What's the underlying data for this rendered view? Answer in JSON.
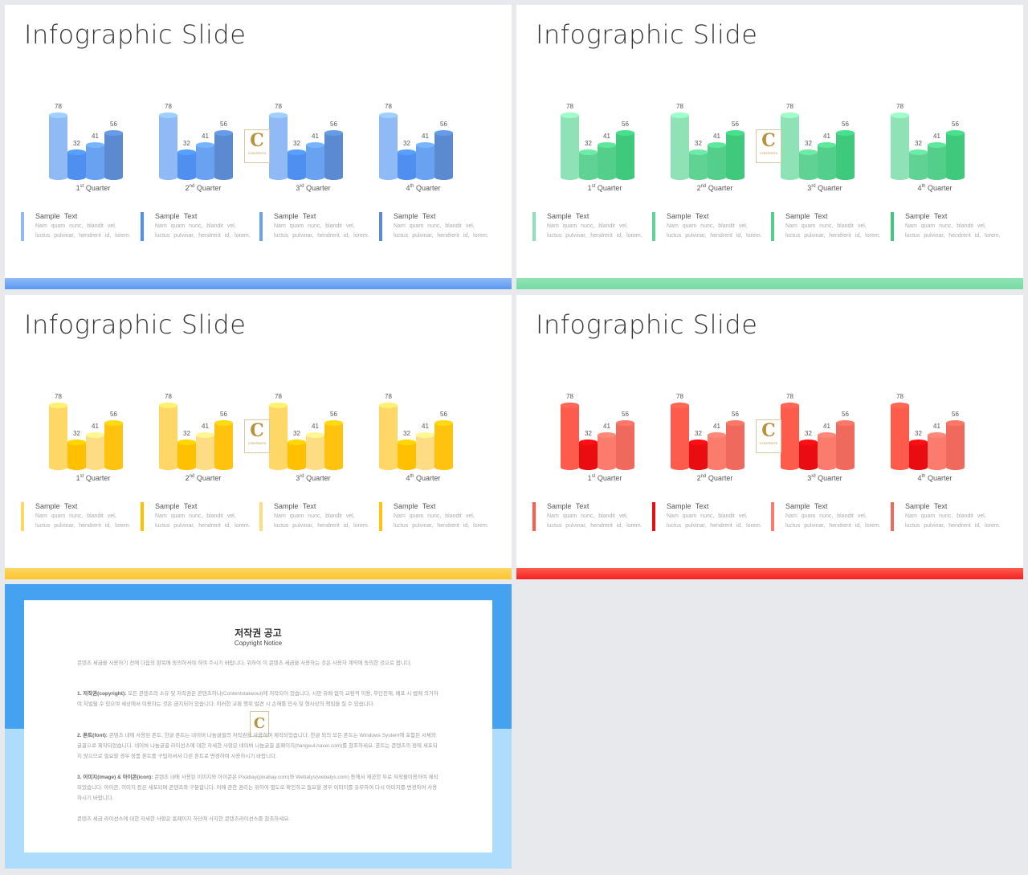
{
  "slides": [
    {
      "title": "Infographic Slide",
      "theme": "blue",
      "colors": [
        "#8fbaf6",
        "#4f8fef",
        "#6aa2f2",
        "#5b8ad0"
      ],
      "bar_color": "#5b98f2",
      "notes": [
        {
          "title": "Sample Text",
          "line1": "Nam quam nunc, blandit vel,",
          "line2": "luctus pulvinar, hendrerit id, lorem."
        },
        {
          "title": "Sample Text",
          "line1": "Nam quam nunc, blandit vel,",
          "line2": "luctus pulvinar, hendrerit id, lorem."
        },
        {
          "title": "Sample Text",
          "line1": "Nam quam nunc, blandit vel,",
          "line2": "luctus pulvinar, hendrerit id, lorem."
        },
        {
          "title": "Sample Text",
          "line1": "Nam quam nunc, blandit vel,",
          "line2": "luctus pulvinar, hendrerit id, lorem."
        }
      ]
    },
    {
      "title": "Infographic Slide",
      "theme": "green",
      "colors": [
        "#8fe2b5",
        "#60d394",
        "#53cf8b",
        "#3ec97c"
      ],
      "bar_color": "#76dca4",
      "notes": [
        {
          "title": "Sample Text",
          "line1": "Nam quam nunc, blandit vel,",
          "line2": "luctus pulvinar, hendrerit id, lorem."
        },
        {
          "title": "Sample Text",
          "line1": "Nam quam nunc, blandit vel,",
          "line2": "luctus pulvinar, hendrerit id, lorem."
        },
        {
          "title": "Sample Text",
          "line1": "Nam quam nunc, blandit vel,",
          "line2": "luctus pulvinar, hendrerit id, lorem."
        },
        {
          "title": "Sample Text",
          "line1": "Nam quam nunc, blandit vel,",
          "line2": "luctus pulvinar, hendrerit id, lorem."
        }
      ]
    },
    {
      "title": "Infographic Slide",
      "theme": "yellow",
      "colors": [
        "#fed766",
        "#fec000",
        "#fedc84",
        "#fec20f"
      ],
      "bar_color": "#fec52c",
      "notes": [
        {
          "title": "Sample Text",
          "line1": "Nam quam nunc, blandit vel,",
          "line2": "luctus pulvinar, hendrerit id, lorem."
        },
        {
          "title": "Sample Text",
          "line1": "Nam quam nunc, blandit vel,",
          "line2": "luctus pulvinar, hendrerit id, lorem."
        },
        {
          "title": "Sample Text",
          "line1": "Nam quam nunc, blandit vel,",
          "line2": "luctus pulvinar, hendrerit id, lorem."
        },
        {
          "title": "Sample Text",
          "line1": "Nam quam nunc, blandit vel,",
          "line2": "luctus pulvinar, hendrerit id, lorem."
        }
      ]
    },
    {
      "title": "Infographic Slide",
      "theme": "red",
      "colors": [
        "#fd5b4c",
        "#e90d12",
        "#fb7b6c",
        "#ef6a5c"
      ],
      "bar_color": "#f52222",
      "notes": [
        {
          "title": "Sample Text",
          "line1": "Nam quam nunc, blandit vel,",
          "line2": "luctus pulvinar, hendrerit id, lorem."
        },
        {
          "title": "Sample Text",
          "line1": "Nam quam nunc, blandit vel,",
          "line2": "luctus pulvinar, hendrerit id, lorem."
        },
        {
          "title": "Sample Text",
          "line1": "Nam quam nunc, blandit vel,",
          "line2": "luctus pulvinar, hendrerit id, lorem."
        },
        {
          "title": "Sample Text",
          "line1": "Nam quam nunc, blandit vel,",
          "line2": "luctus pulvinar, hendrerit id, lorem."
        }
      ]
    }
  ],
  "quarters": [
    {
      "num": "1",
      "sup": "st",
      "word": "Quarter"
    },
    {
      "num": "2",
      "sup": "nd",
      "word": "Quarter"
    },
    {
      "num": "3",
      "sup": "rd",
      "word": "Quarter"
    },
    {
      "num": "4",
      "sup": "th",
      "word": "Quarter"
    }
  ],
  "values": [
    78,
    32,
    41,
    56
  ],
  "logo": {
    "letter": "C",
    "word": "CONTENTS"
  },
  "copyright": {
    "title": "저작권 공고",
    "subtitle": "Copyright Notice",
    "intro": "콘텐츠 세금을 사용하기 전에 다음의 항목에 동의하셔야 하며 주시기 바랍니다. 위하여 이 콘텐츠 세금을 사용하는 것은 사용자 계약에 동의한 것으로 봅니다.",
    "p1_head": "1. 저작권(copyright):",
    "p1_body": "모든 콘텐츠의 소유 및 저작권은 콘텐츠하나(Contentstakeout)에 저작되어 있습니다. 시판 유배 없이 교환적 이용, 무단전재, 배포 시 법에 의거하여 처벌될 수 있으며 세상에서 이용하는 것은 금지되어 있습니다. 이러한 교환 행위 발견 시 손해를 민사 및 형사상의 책임을 질 수 있습니다.",
    "p2_head": "2. 폰트(font):",
    "p2_body": "콘텐츠 내에 사용된 폰트, 한글 폰트는 네이버 나눔글꼴의 저작권을 사용하여 제작되었습니다. 한글 외의 모든 폰트는 Windows System에 포함된 서체와 글꼴으로 제작되었습니다. 네이버 나눔글꼴 라이선스에 대한 자세한 사항은 네이버 나눔글꼴 홈페이지(hangeul.naver.com)를 참조하세요. 폰트는 콘텐츠의 정에 세포되지 않으므로 필요할 경우 정품 폰트를 구입하셔서 다른 폰트로 변경하여 사용하시기 바랍니다.",
    "p3_head": "3. 이미지(image) & 아이콘(icon):",
    "p3_body": "콘텐츠 내에 사용된 이미지와 아이콘은 Pixabay(pixabay.com)와 Webalys(webalys.com) 등에서 제공한 무료 저작물이용하여 제작되었습니다. 아이콘, 이미지 등은 세포되며 콘텐츠와 구분합니다. 이에 관한 권리는 위하여 별도로 확인하고 필요할 경우 이미지를 유무하여 다시 이미지를 변경하여 사용하시기 바랍니다.",
    "closing": "콘텐츠 세금 라이선스에 대한 자세한 사항은 홈페이지 하단에 사치한 콘텐츠라이선스를 참조하세요."
  }
}
